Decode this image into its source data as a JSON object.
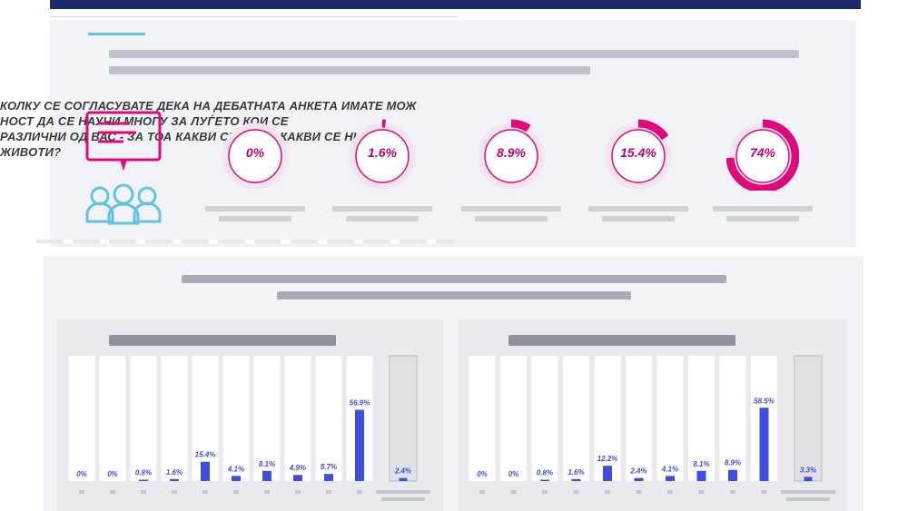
{
  "question": {
    "lines": [
      "КОЛКУ СЕ СОГЛАСУВАТЕ ДЕКА НА ДЕБАТНАТА АНКЕТА ИМАТЕ МОЖ",
      "НОСТ ДА СЕ НАУЧИ МНОГУ ЗА ЛУЃЕТО КОИ СЕ",
      "РАЗЛИЧНИ ОД ВАС - ЗА ТОА КАКВИ СЕ ТИЕ И КАКВИ СЕ НИВНИТЕ",
      "ЖИВОТИ?"
    ]
  },
  "colors": {
    "accent": "#e0087a",
    "bar": "#3d4de6",
    "ring_bg": "#f6e4ee",
    "navy": "#1b2a6b"
  },
  "icon": "speech-bubble-people-icon",
  "chart_data": [
    {
      "type": "pie",
      "values": [
        0,
        1.6,
        8.9,
        15.4,
        74
      ],
      "labels": [
        "0%",
        "1.6%",
        "8.9%",
        "15.4%",
        "74%"
      ]
    },
    {
      "type": "bar",
      "categories": [
        "1",
        "2",
        "3",
        "4",
        "5",
        "6",
        "7",
        "8",
        "9",
        "10",
        ""
      ],
      "values": [
        0,
        0,
        0.8,
        1.6,
        15.4,
        4.1,
        8.1,
        4.9,
        5.7,
        56.9,
        2.4
      ],
      "labels": [
        "0%",
        "0%",
        "0.8%",
        "1.6%",
        "15.4%",
        "4.1%",
        "8.1%",
        "4.9%",
        "5.7%",
        "56.9%",
        "2.4%"
      ],
      "ylim": [
        0,
        100
      ]
    },
    {
      "type": "bar",
      "categories": [
        "1",
        "2",
        "3",
        "4",
        "5",
        "6",
        "7",
        "8",
        "9",
        "10",
        ""
      ],
      "values": [
        0,
        0,
        0.8,
        1.6,
        12.2,
        2.4,
        4.1,
        8.1,
        8.9,
        58.5,
        3.3
      ],
      "labels": [
        "0%",
        "0%",
        "0.8%",
        "1.6%",
        "12.2%",
        "2.4%",
        "4.1%",
        "8.1%",
        "8.9%",
        "58.5%",
        "3.3%"
      ],
      "ylim": [
        0,
        100
      ]
    }
  ]
}
